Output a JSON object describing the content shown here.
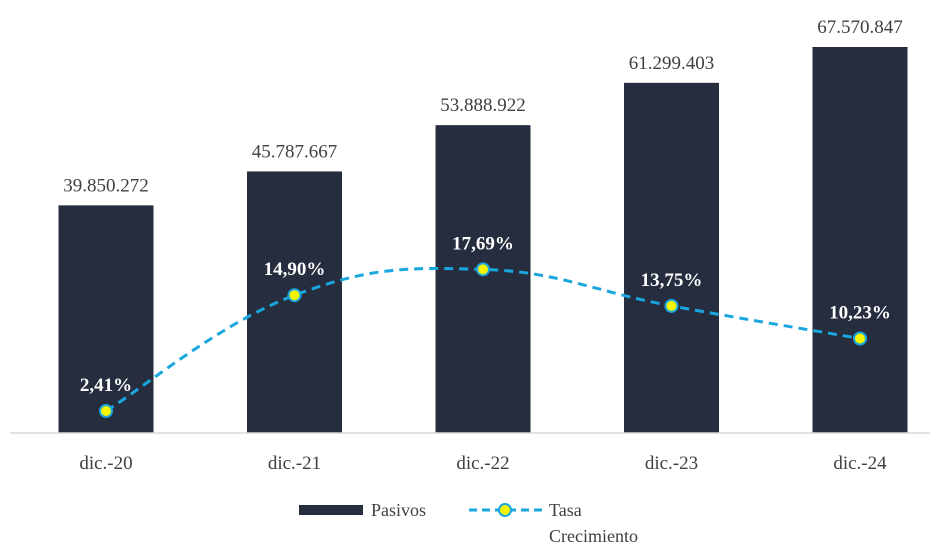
{
  "chart_data": {
    "type": "bar",
    "categories": [
      "dic.-20",
      "dic.-21",
      "dic.-22",
      "dic.-23",
      "dic.-24"
    ],
    "bar_value_labels": [
      "39.850.272",
      "45.787.667",
      "53.888.922",
      "61.299.403",
      "67.570.847"
    ],
    "rate_labels": [
      "2,41%",
      "14,90%",
      "17,69%",
      "13,75%",
      "10,23%"
    ],
    "series": [
      {
        "name": "Pasivos",
        "type": "bar",
        "values": [
          39850272,
          45787667,
          53888922,
          61299403,
          67570847
        ],
        "color": "#252d3e"
      },
      {
        "name": "Tasa Crecimiento",
        "type": "line",
        "values": [
          2.41,
          14.9,
          17.69,
          13.75,
          10.23
        ],
        "color": "#1aa7e0",
        "marker_color": "#f5f500"
      }
    ],
    "legend": {
      "position": "bottom",
      "items": [
        {
          "label": "Pasivos"
        },
        {
          "label_line1": "Tasa",
          "label_line2": "Crecimiento"
        }
      ]
    },
    "grid": false
  }
}
